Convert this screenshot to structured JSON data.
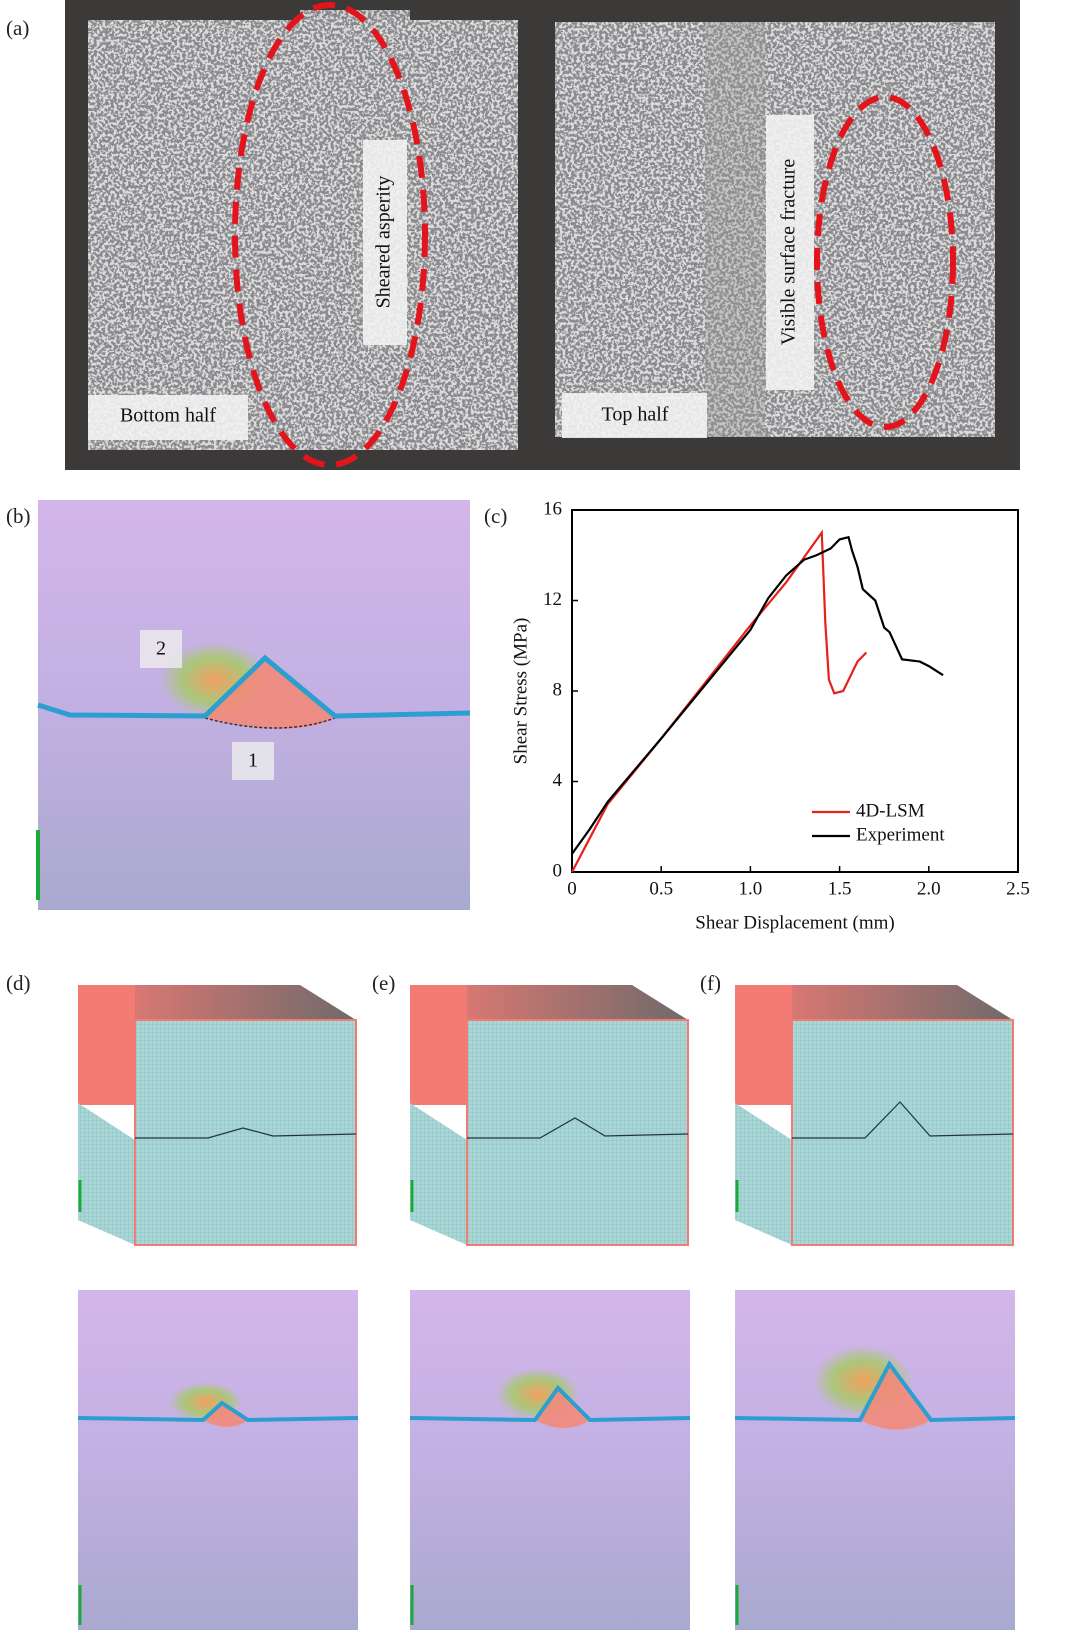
{
  "figure": {
    "panel_a": {
      "label": "(a)",
      "sheared_asperity": "Sheared asperity",
      "surface_fracture": "Visible surface fracture",
      "bottom_half": "Bottom half",
      "top_half": "Top half"
    },
    "panel_b": {
      "label": "(b)",
      "zone_2": "2",
      "zone_1": "1"
    },
    "panel_c_label": "(c)",
    "panel_d_label": "(d)",
    "panel_e_label": "(e)",
    "panel_f_label": "(f)"
  },
  "chart_data": {
    "type": "line",
    "xlabel": "Shear Displacement (mm)",
    "ylabel": "Shear Stress (MPa)",
    "xlim": [
      0,
      2.5
    ],
    "xticks": [
      0,
      0.5,
      {
        "value": 1,
        "label": "1.0"
      },
      1.5,
      {
        "value": 2,
        "label": "2.0"
      },
      2.5
    ],
    "ylim": [
      0,
      16
    ],
    "yticks": [
      0,
      4,
      8,
      12,
      16
    ],
    "legend": "lower right",
    "series": [
      {
        "name": "4D-LSM",
        "color": "#e8201c",
        "x": [
          0,
          0.1,
          0.2,
          0.5,
          1.0,
          1.2,
          1.4,
          1.42,
          1.44,
          1.47,
          1.52,
          1.6,
          1.65
        ],
        "values": [
          0,
          1.5,
          3.0,
          5.9,
          10.9,
          12.8,
          15.0,
          11.0,
          8.5,
          7.9,
          8.0,
          9.3,
          9.7
        ]
      },
      {
        "name": "Experiment",
        "color": "#000000",
        "x": [
          0,
          0.1,
          0.2,
          0.5,
          1.0,
          1.1,
          1.2,
          1.3,
          1.37,
          1.45,
          1.5,
          1.55,
          1.57,
          1.6,
          1.63,
          1.7,
          1.75,
          1.78,
          1.85,
          1.95,
          2.0,
          2.08
        ],
        "values": [
          0.8,
          1.9,
          3.1,
          5.9,
          10.7,
          12.1,
          13.1,
          13.8,
          14.0,
          14.3,
          14.7,
          14.8,
          14.2,
          13.5,
          12.5,
          12.0,
          10.8,
          10.6,
          9.4,
          9.3,
          9.1,
          8.7
        ]
      }
    ]
  }
}
